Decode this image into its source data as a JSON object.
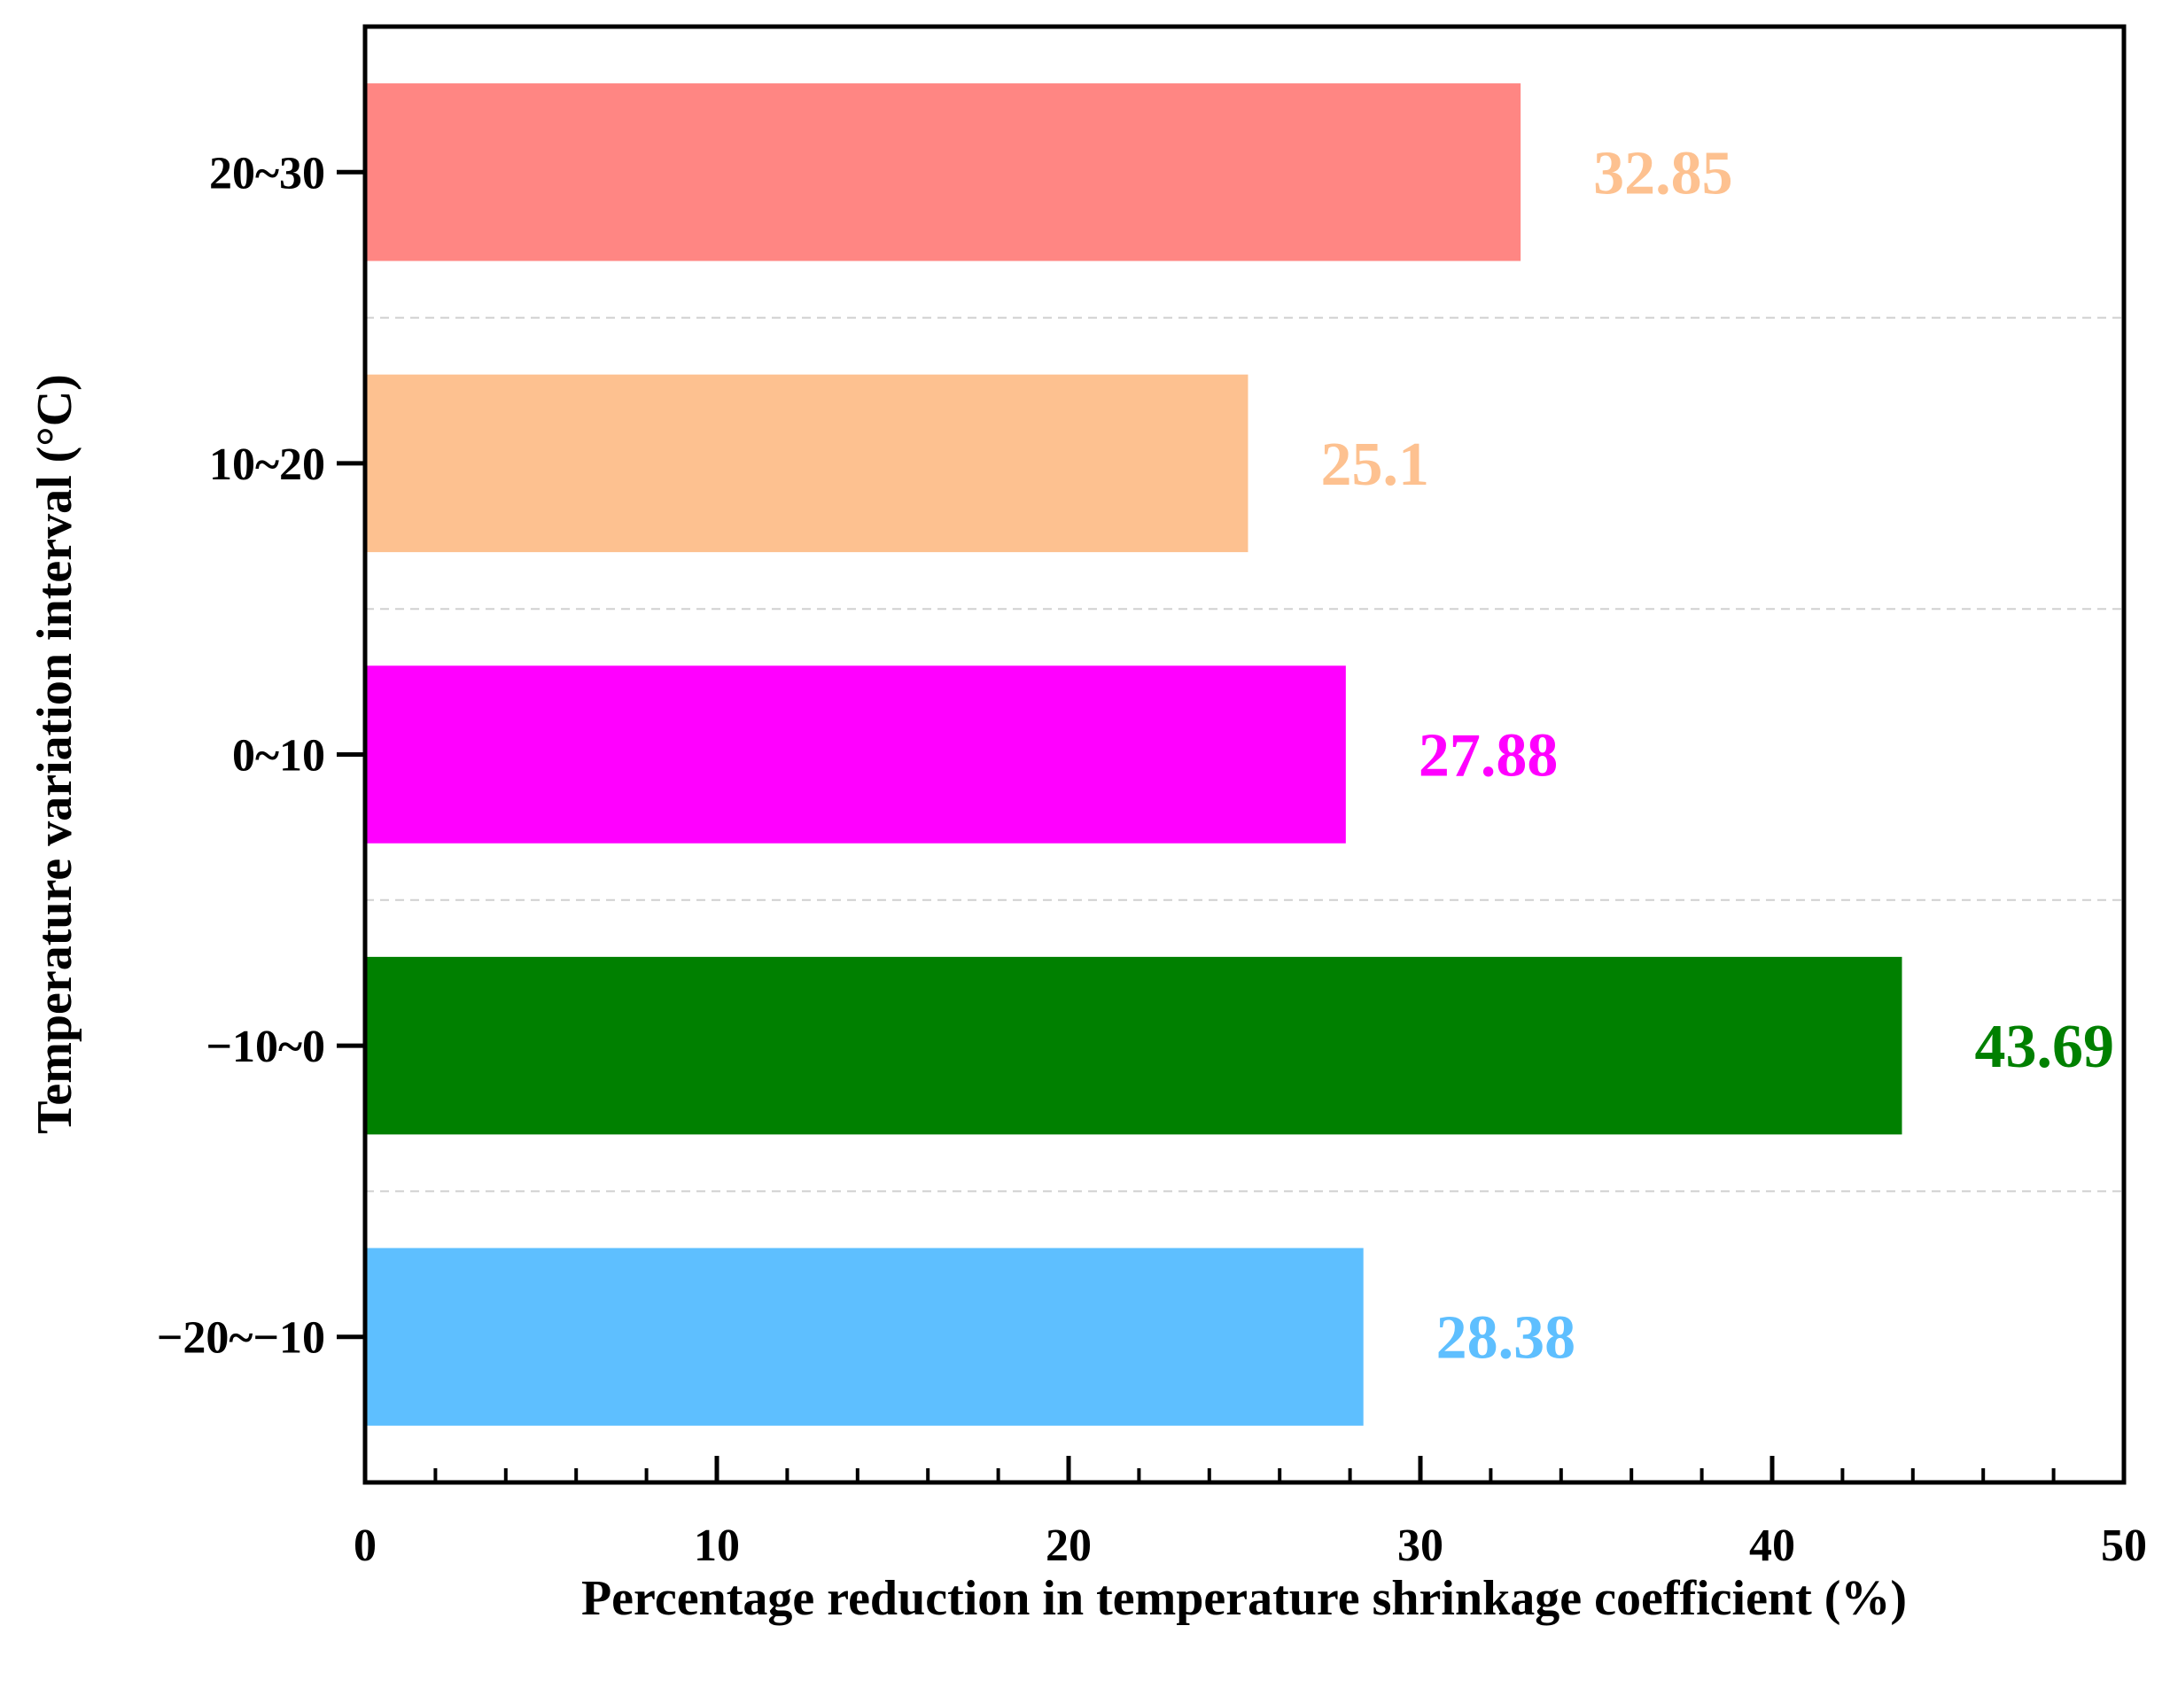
{
  "chart_data": {
    "type": "bar",
    "orientation": "horizontal",
    "categories": [
      "−20~−10",
      "−10~0",
      "0~10",
      "10~20",
      "20~30"
    ],
    "values": [
      28.38,
      43.69,
      27.88,
      25.1,
      32.85
    ],
    "value_labels": [
      "28.38",
      "43.69",
      "27.88",
      "25.1",
      "32.85"
    ],
    "colors": [
      "#5EBFFF",
      "#008000",
      "#FF00FF",
      "#FDC190",
      "#FF8683"
    ],
    "label_colors": [
      "#5EBFFF",
      "#008000",
      "#FF00FF",
      "#FDC190",
      "#FDC190"
    ],
    "xlabel": "Percentage reduction in temperature shrinkage coefficient (%)",
    "ylabel": "Temperature variation interval (°C)",
    "xlim": [
      0,
      50
    ],
    "xticks": [
      0,
      10,
      20,
      30,
      40,
      50
    ],
    "xtick_labels": [
      "0",
      "10",
      "20",
      "30",
      "40",
      "50"
    ],
    "minor_xticks": [
      2,
      4,
      6,
      8,
      12,
      14,
      16,
      18,
      22,
      24,
      26,
      28,
      32,
      34,
      36,
      38,
      42,
      44,
      46,
      48
    ],
    "grid": "horizontal dashed separators between bars",
    "title": ""
  }
}
